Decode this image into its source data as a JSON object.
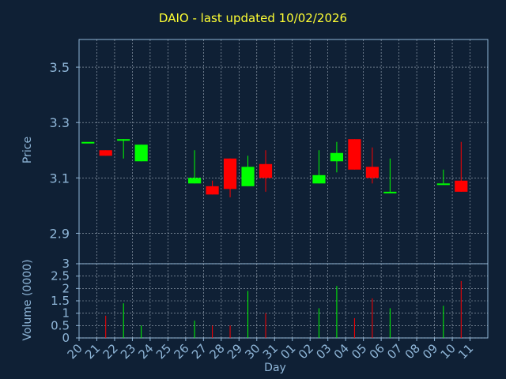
{
  "chart_data": {
    "type": "candlestick",
    "title": "DAIO - last updated 10/02/2026",
    "xlabel": "Day",
    "price_panel": {
      "ylabel": "Price",
      "y_ticks": [
        "2.9",
        "3.1",
        "3.3",
        "3.5"
      ],
      "ylim": [
        2.79,
        3.6
      ],
      "grid": true
    },
    "volume_panel": {
      "ylabel": "Volume (0000)",
      "y_ticks": [
        "0",
        "0.5",
        "1",
        "1.5",
        "2",
        "2.5",
        "3"
      ],
      "ylim": [
        0,
        3
      ],
      "grid": true
    },
    "x_ticks": [
      "20",
      "21",
      "22",
      "23",
      "24",
      "25",
      "26",
      "27",
      "28",
      "29",
      "30",
      "31",
      "01",
      "02",
      "03",
      "04",
      "05",
      "06",
      "07",
      "08",
      "09",
      "10",
      "11"
    ],
    "candles": [
      {
        "day": "20",
        "open": 3.23,
        "close": 3.23,
        "high": 3.23,
        "low": 3.23,
        "volume": 0.0
      },
      {
        "day": "21",
        "open": 3.2,
        "close": 3.18,
        "high": 3.2,
        "low": 3.18,
        "volume": 0.9
      },
      {
        "day": "22",
        "open": 3.24,
        "close": 3.24,
        "high": 3.24,
        "low": 3.17,
        "volume": 1.4
      },
      {
        "day": "23",
        "open": 3.16,
        "close": 3.22,
        "high": 3.22,
        "low": 3.16,
        "volume": 0.5
      },
      {
        "day": "26",
        "open": 3.08,
        "close": 3.1,
        "high": 3.2,
        "low": 3.08,
        "volume": 0.7
      },
      {
        "day": "27",
        "open": 3.07,
        "close": 3.04,
        "high": 3.09,
        "low": 3.04,
        "volume": 0.5
      },
      {
        "day": "28",
        "open": 3.17,
        "close": 3.06,
        "high": 3.17,
        "low": 3.03,
        "volume": 0.5
      },
      {
        "day": "29",
        "open": 3.07,
        "close": 3.14,
        "high": 3.18,
        "low": 3.07,
        "volume": 1.9
      },
      {
        "day": "30",
        "open": 3.15,
        "close": 3.1,
        "high": 3.2,
        "low": 3.05,
        "volume": 1.0
      },
      {
        "day": "02",
        "open": 3.08,
        "close": 3.11,
        "high": 3.2,
        "low": 3.08,
        "volume": 1.2
      },
      {
        "day": "03",
        "open": 3.16,
        "close": 3.19,
        "high": 3.23,
        "low": 3.12,
        "volume": 2.1
      },
      {
        "day": "04",
        "open": 3.24,
        "close": 3.13,
        "high": 3.24,
        "low": 3.13,
        "volume": 0.8
      },
      {
        "day": "05",
        "open": 3.14,
        "close": 3.1,
        "high": 3.21,
        "low": 3.08,
        "volume": 1.6
      },
      {
        "day": "06",
        "open": 3.05,
        "close": 3.05,
        "high": 3.17,
        "low": 3.05,
        "volume": 1.2
      },
      {
        "day": "09",
        "open": 3.08,
        "close": 3.08,
        "high": 3.13,
        "low": 3.08,
        "volume": 1.3
      },
      {
        "day": "10",
        "open": 3.09,
        "close": 3.05,
        "high": 3.23,
        "low": 3.05,
        "volume": 2.3
      }
    ],
    "colors": {
      "background": "#0f2035",
      "axis": "#8fb6d8",
      "grid": "#c8d4e0",
      "up": "#00ff00",
      "down": "#ff0000",
      "title": "#ffff33"
    }
  }
}
